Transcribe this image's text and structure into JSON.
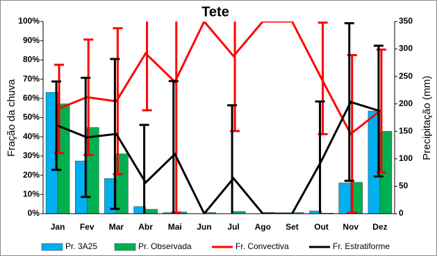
{
  "chart_data": {
    "type": "bar_line",
    "title": "Tete",
    "y_label": "Fração da chuva",
    "y2_label": "Precipitação (mm)",
    "categories": [
      "Jan",
      "Fev",
      "Mar",
      "Abr",
      "Mai",
      "Jun",
      "Jul",
      "Ago",
      "Set",
      "Out",
      "Nov",
      "Dez"
    ],
    "ylim": [
      0,
      100
    ],
    "yticks": [
      {
        "value": 0,
        "label": "0%"
      },
      {
        "value": 10,
        "label": "10%"
      },
      {
        "value": 20,
        "label": "20%"
      },
      {
        "value": 30,
        "label": "30%"
      },
      {
        "value": 40,
        "label": "40%"
      },
      {
        "value": 50,
        "label": "50%"
      },
      {
        "value": 60,
        "label": "60%"
      },
      {
        "value": 70,
        "label": "70%"
      },
      {
        "value": 80,
        "label": "80%"
      },
      {
        "value": 90,
        "label": "90%"
      },
      {
        "value": 100,
        "label": "100%"
      }
    ],
    "y2lim": [
      0,
      350
    ],
    "y2ticks": [
      0,
      50,
      100,
      150,
      200,
      250,
      300,
      350
    ],
    "series": [
      {
        "name": "Pr. 3A25",
        "type": "bar",
        "axis": "y2",
        "color": "#00b0f0",
        "values": [
          221,
          96,
          64,
          13,
          2,
          0,
          0,
          0,
          0,
          5,
          56,
          187
        ]
      },
      {
        "name": "Pr. Observada",
        "type": "bar",
        "axis": "y2",
        "color": "#00b050",
        "values": [
          200,
          157,
          109,
          8,
          3,
          2,
          4,
          2,
          2,
          1,
          57,
          150
        ]
      },
      {
        "name": "Fr. Convectiva",
        "type": "line",
        "color": "#ff0000",
        "values": [
          54.5,
          60.6,
          58.5,
          83.4,
          68.6,
          100,
          82,
          100,
          100,
          70.4,
          41.5,
          53.4
        ],
        "errors": [
          23,
          30,
          38,
          29.6,
          68,
          null,
          39,
          null,
          null,
          29,
          41,
          32
        ]
      },
      {
        "name": "Fr. Estratiforme",
        "type": "line",
        "color": "#000000",
        "values": [
          45.8,
          39.7,
          41.5,
          16.2,
          31,
          0,
          18.4,
          0,
          0,
          27.4,
          58.1,
          53.4
        ],
        "errors": [
          23,
          31,
          39,
          30,
          38,
          null,
          38,
          null,
          null,
          31,
          41,
          34
        ]
      }
    ]
  }
}
